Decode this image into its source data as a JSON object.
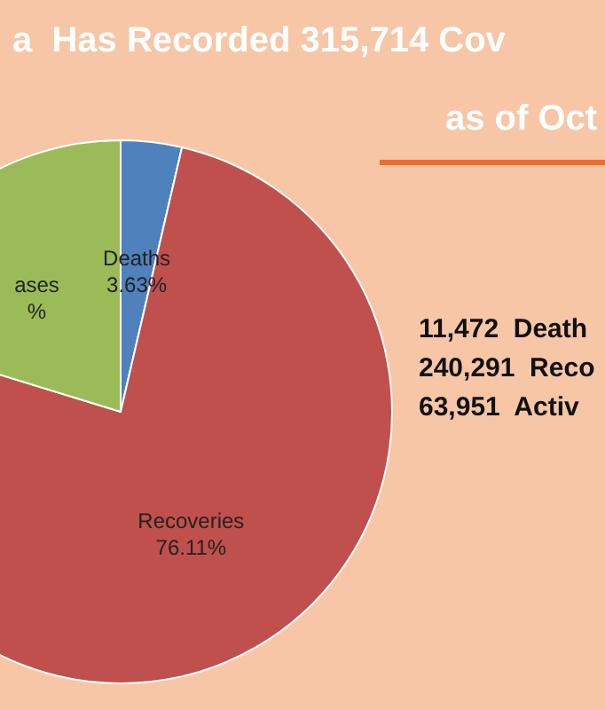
{
  "chart_data": {
    "type": "pie",
    "title": "a  Has Recorded 315,714 Cov",
    "subtitle": "as of Oct",
    "categories": [
      "Deaths",
      "Recoveries",
      "ases"
    ],
    "values": [
      3.63,
      76.11,
      20.26
    ],
    "colors": [
      "#4f81bd",
      "#c0504d",
      "#9bbb59"
    ],
    "value_labels": [
      "3.63%",
      "76.11%",
      "%"
    ],
    "annotations": [
      "11,472  Death",
      "240,291  Reco",
      "63,951  Activ"
    ],
    "legend": false
  }
}
